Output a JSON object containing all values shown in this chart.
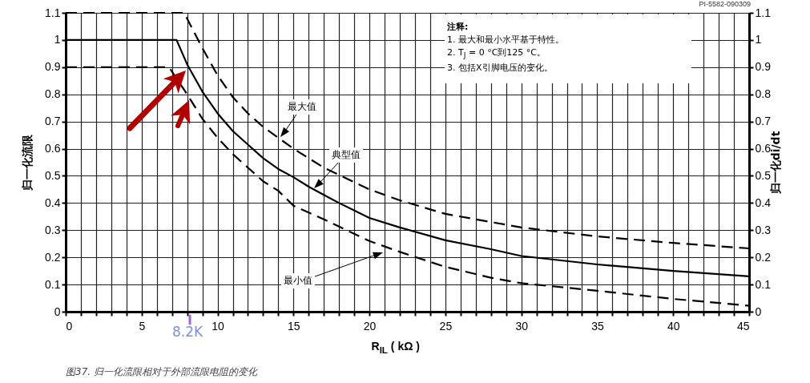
{
  "chart_data": {
    "type": "line",
    "ylabel": "归一化流限",
    "y2label": "归一化di/dt",
    "xlabel": "R$_{IL}$ ( kΩ )",
    "xlim": [
      0,
      45
    ],
    "xticks": [
      0,
      {
        "value": 1,
        "label": null
      },
      {
        "value": 2,
        "label": null
      },
      {
        "value": 3,
        "label": null
      },
      {
        "value": 4,
        "label": null
      },
      5,
      {
        "value": 6,
        "label": null
      },
      {
        "value": 7,
        "label": null
      },
      {
        "value": 8,
        "label": null
      },
      {
        "value": 9,
        "label": null
      },
      10,
      {
        "value": 11,
        "label": null
      },
      {
        "value": 12,
        "label": null
      },
      {
        "value": 13,
        "label": null
      },
      {
        "value": 14,
        "label": null
      },
      15,
      {
        "value": 16,
        "label": null
      },
      {
        "value": 17,
        "label": null
      },
      {
        "value": 18,
        "label": null
      },
      {
        "value": 19,
        "label": null
      },
      20,
      {
        "value": 21,
        "label": null
      },
      {
        "value": 22,
        "label": null
      },
      {
        "value": 23,
        "label": null
      },
      {
        "value": 24,
        "label": null
      },
      25,
      {
        "value": 26,
        "label": null
      },
      {
        "value": 27,
        "label": null
      },
      {
        "value": 28,
        "label": null
      },
      {
        "value": 29,
        "label": null
      },
      30,
      {
        "value": 31,
        "label": null
      },
      {
        "value": 32,
        "label": null
      },
      {
        "value": 33,
        "label": null
      },
      {
        "value": 34,
        "label": null
      },
      35,
      {
        "value": 36,
        "label": null
      },
      {
        "value": 37,
        "label": null
      },
      {
        "value": 38,
        "label": null
      },
      {
        "value": 39,
        "label": null
      },
      40,
      {
        "value": 41,
        "label": null
      },
      {
        "value": 42,
        "label": null
      },
      {
        "value": 43,
        "label": null
      },
      {
        "value": 44,
        "label": null
      },
      45
    ],
    "ylim": [
      0,
      1.1
    ],
    "yticks": [
      0,
      0.1,
      0.2,
      0.3,
      0.4,
      0.5,
      0.6,
      0.7,
      0.8,
      0.9,
      1,
      1.1
    ],
    "y2lim": [
      0,
      1.1
    ],
    "y2ticks": [
      0,
      0.1,
      0.2,
      0.3,
      0.4,
      0.5,
      0.6,
      0.7,
      0.8,
      0.9,
      1,
      1.1
    ],
    "grid": true,
    "marker": "none",
    "series": [
      {
        "color": "#000000",
        "line_style": "dashed",
        "x": [
          0,
          7.8,
          9,
          10,
          11,
          12,
          13,
          14,
          15,
          17,
          20,
          22,
          25,
          28,
          30,
          35,
          40,
          45
        ],
        "values": [
          1.1,
          1.1,
          0.97,
          0.87,
          0.79,
          0.73,
          0.68,
          0.64,
          0.6,
          0.53,
          0.45,
          0.41,
          0.36,
          0.33,
          0.31,
          0.277,
          0.253,
          0.233
        ]
      },
      {
        "color": "#000000",
        "line_style": "solid",
        "x": [
          0,
          7.3,
          8,
          9,
          10,
          11,
          12,
          13,
          14,
          15,
          16,
          17,
          18,
          20,
          22,
          25,
          28,
          30,
          35,
          40,
          45
        ],
        "values": [
          1,
          1,
          0.91,
          0.81,
          0.73,
          0.665,
          0.615,
          0.565,
          0.525,
          0.495,
          0.46,
          0.43,
          0.4,
          0.345,
          0.31,
          0.263,
          0.23,
          0.205,
          0.174,
          0.15,
          0.13
        ]
      },
      {
        "color": "#000000",
        "line_style": "dashed",
        "x": [
          0,
          6.8,
          8,
          9,
          10,
          11,
          12,
          13,
          14,
          15,
          17,
          20,
          22,
          25,
          28,
          30,
          35,
          40,
          45
        ],
        "values": [
          0.9,
          0.9,
          0.8,
          0.71,
          0.64,
          0.58,
          0.53,
          0.48,
          0.445,
          0.39,
          0.34,
          0.26,
          0.22,
          0.165,
          0.125,
          0.105,
          0.077,
          0.047,
          0.022
        ]
      }
    ],
    "annotations": [
      "PI-5582-090309",
      "注释:",
      "1. 最大和最小水平基于特性。",
      "2. T$_{J}$ = 0 °C到125 °C。",
      "3. 包括X引脚电压的变化。",
      "图37.    归一化流限相对于外部流限电阻的变化",
      "最大值",
      "典型值",
      "最小值",
      "8.2K"
    ]
  }
}
